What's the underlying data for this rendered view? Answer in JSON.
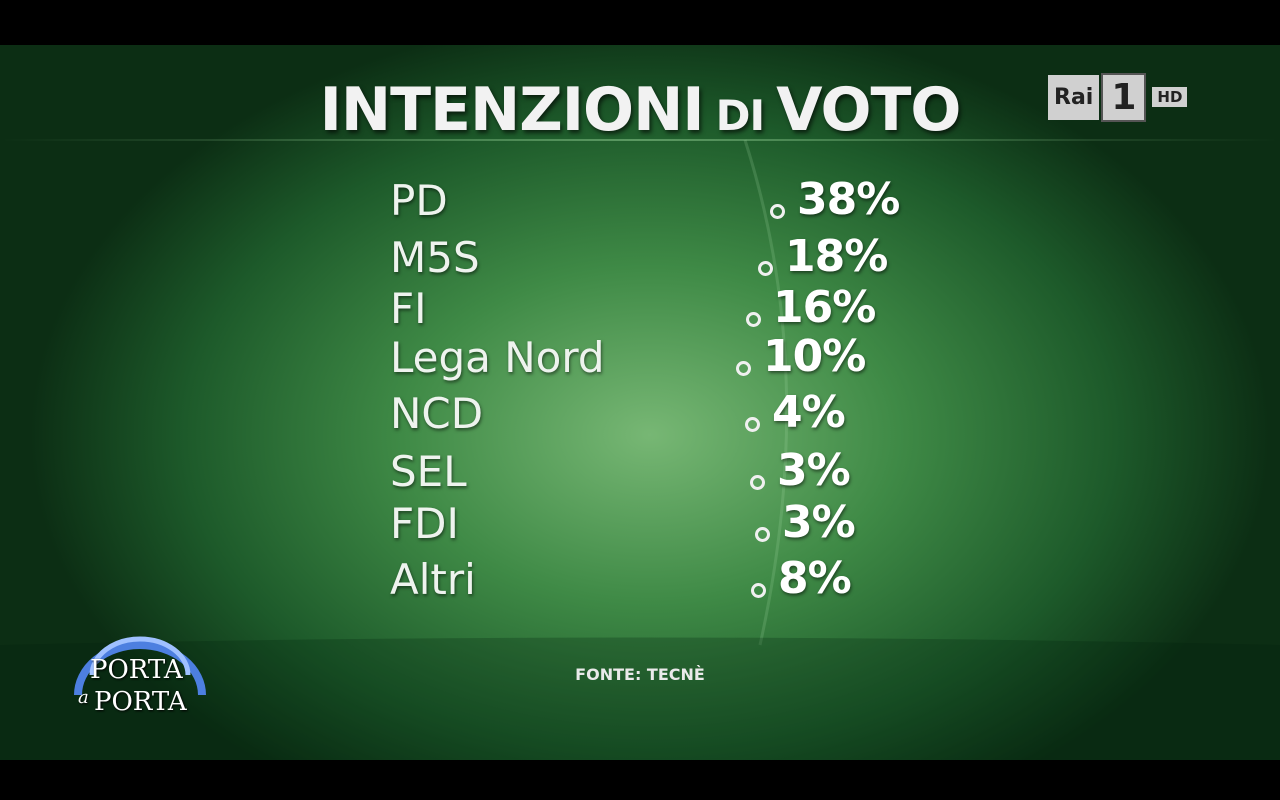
{
  "title": [
    "INTENZIONI",
    "DI",
    "VOTO"
  ],
  "rows": [
    {
      "party": "PD",
      "value": "38%"
    },
    {
      "party": "M5S",
      "value": "18%"
    },
    {
      "party": "FI",
      "value": "16%"
    },
    {
      "party": "Lega Nord",
      "value": "10%"
    },
    {
      "party": "NCD",
      "value": "4%"
    },
    {
      "party": "SEL",
      "value": "3%"
    },
    {
      "party": "FDI",
      "value": "3%"
    },
    {
      "party": "Altri",
      "value": "8%"
    }
  ],
  "source": "FONTE: TECNÈ",
  "channel_logo": {
    "brand": "Rai",
    "number": "1",
    "hd": "HD"
  },
  "show_logo": [
    "PORTA",
    "a",
    "PORTA"
  ]
}
